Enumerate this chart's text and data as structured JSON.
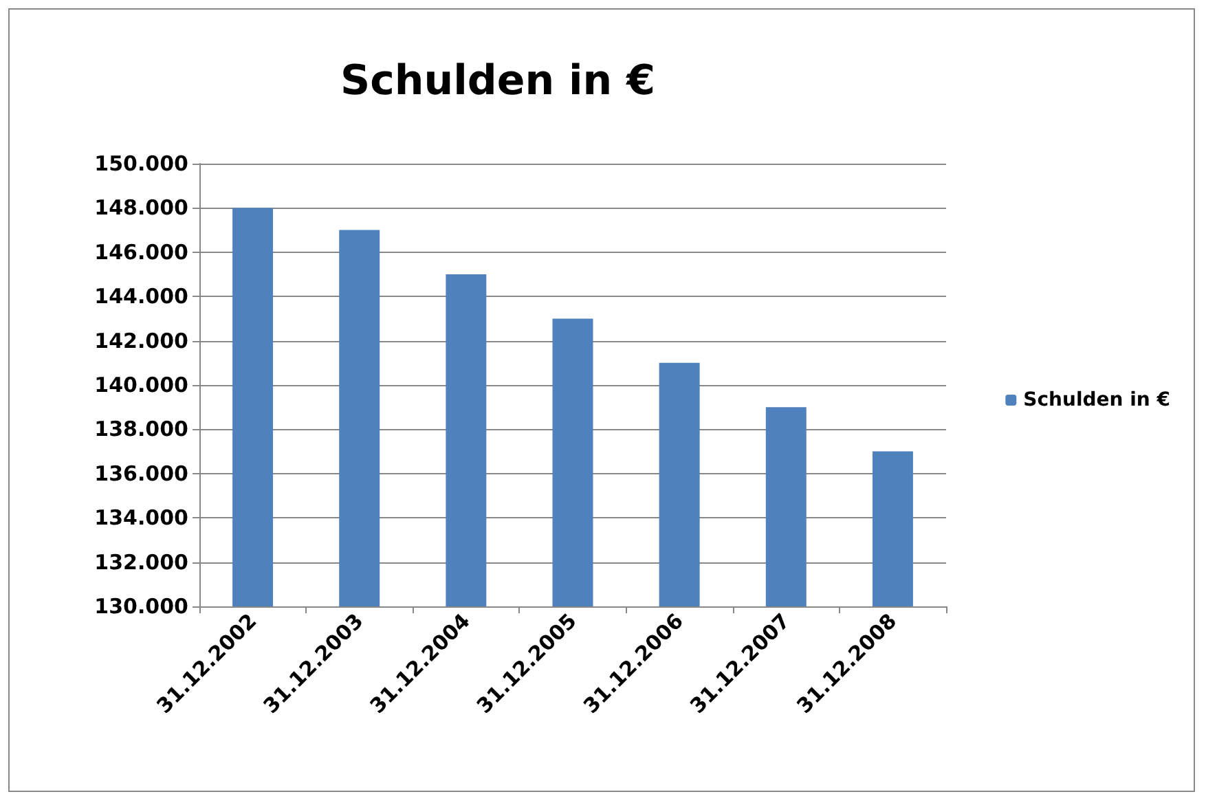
{
  "chart_data": {
    "type": "bar",
    "title": "Schulden in €",
    "categories": [
      "31.12.2002",
      "31.12.2003",
      "31.12.2004",
      "31.12.2005",
      "31.12.2006",
      "31.12.2007",
      "31.12.2008"
    ],
    "series": [
      {
        "name": "Schulden in €",
        "color": "#4f81bd",
        "values": [
          148000,
          147000,
          145000,
          143000,
          141000,
          139000,
          137000
        ]
      }
    ],
    "ylim": [
      130000,
      150000
    ],
    "yticks": [
      {
        "value": 130000,
        "label": "130.000"
      },
      {
        "value": 132000,
        "label": "132.000"
      },
      {
        "value": 134000,
        "label": "134.000"
      },
      {
        "value": 136000,
        "label": "136.000"
      },
      {
        "value": 138000,
        "label": "138.000"
      },
      {
        "value": 140000,
        "label": "140.000"
      },
      {
        "value": 142000,
        "label": "142.000"
      },
      {
        "value": 144000,
        "label": "144.000"
      },
      {
        "value": 146000,
        "label": "146.000"
      },
      {
        "value": 148000,
        "label": "148.000"
      },
      {
        "value": 150000,
        "label": "150.000"
      }
    ],
    "grid": "y",
    "legend": "right"
  }
}
